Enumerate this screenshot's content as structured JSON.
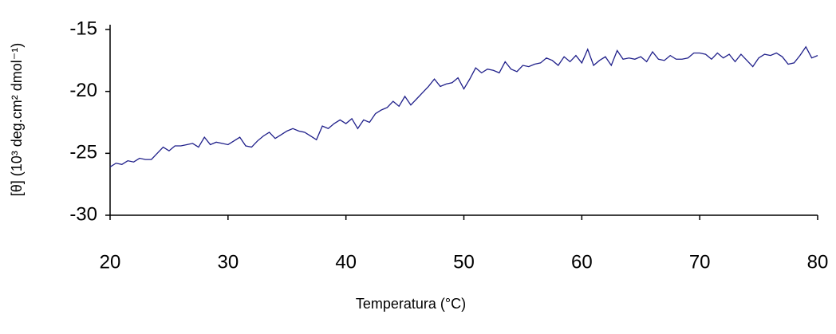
{
  "chart_data": {
    "type": "line",
    "y_label": "[θ] (10³ deg.cm² dmol⁻¹)",
    "x_label": "Temperatura (°C)",
    "xlim": [
      20,
      80
    ],
    "xticks": [
      20,
      30,
      40,
      50,
      60,
      70,
      80
    ],
    "ylim": [
      -30,
      -15
    ],
    "yticks": [
      -30,
      -25,
      -20,
      -15
    ],
    "grid": false,
    "x": [
      20,
      20.5,
      21,
      21.5,
      22,
      22.5,
      23,
      23.5,
      24,
      24.5,
      25,
      25.5,
      26,
      26.5,
      27,
      27.5,
      28,
      28.5,
      29,
      29.5,
      30,
      30.5,
      31,
      31.5,
      32,
      32.5,
      33,
      33.5,
      34,
      34.5,
      35,
      35.5,
      36,
      36.5,
      37,
      37.5,
      38,
      38.5,
      39,
      39.5,
      40,
      40.5,
      41,
      41.5,
      42,
      42.5,
      43,
      43.5,
      44,
      44.5,
      45,
      45.5,
      46,
      46.5,
      47,
      47.5,
      48,
      48.5,
      49,
      49.5,
      50,
      50.5,
      51,
      51.5,
      52,
      52.5,
      53,
      53.5,
      54,
      54.5,
      55,
      55.5,
      56,
      56.5,
      57,
      57.5,
      58,
      58.5,
      59,
      59.5,
      60,
      60.5,
      61,
      61.5,
      62,
      62.5,
      63,
      63.5,
      64,
      64.5,
      65,
      65.5,
      66,
      66.5,
      67,
      67.5,
      68,
      68.5,
      69,
      69.5,
      70,
      70.5,
      71,
      71.5,
      72,
      72.5,
      73,
      73.5,
      74,
      74.5,
      75,
      75.5,
      76,
      76.5,
      77,
      77.5,
      78,
      78.5,
      79,
      79.5,
      80
    ],
    "series": [
      {
        "color": "#1f1f8a",
        "values": [
          -26.1,
          -25.8,
          -25.9,
          -25.6,
          -25.7,
          -25.4,
          -25.5,
          -25.5,
          -25.0,
          -24.5,
          -24.8,
          -24.4,
          -24.4,
          -24.3,
          -24.2,
          -24.5,
          -23.7,
          -24.3,
          -24.1,
          -24.2,
          -24.3,
          -24.0,
          -23.7,
          -24.4,
          -24.5,
          -24.0,
          -23.6,
          -23.3,
          -23.8,
          -23.5,
          -23.2,
          -23.0,
          -23.2,
          -23.3,
          -23.6,
          -23.9,
          -22.8,
          -23.0,
          -22.6,
          -22.3,
          -22.6,
          -22.2,
          -23.0,
          -22.3,
          -22.5,
          -21.8,
          -21.5,
          -21.3,
          -20.8,
          -21.2,
          -20.4,
          -21.1,
          -20.6,
          -20.1,
          -19.6,
          -19.0,
          -19.6,
          -19.4,
          -19.3,
          -18.9,
          -19.8,
          -19.0,
          -18.1,
          -18.5,
          -18.2,
          -18.3,
          -18.5,
          -17.6,
          -18.2,
          -18.4,
          -17.9,
          -18.0,
          -17.8,
          -17.7,
          -17.3,
          -17.5,
          -17.9,
          -17.2,
          -17.6,
          -17.1,
          -17.7,
          -16.6,
          -17.9,
          -17.5,
          -17.2,
          -17.9,
          -16.7,
          -17.4,
          -17.3,
          -17.4,
          -17.2,
          -17.6,
          -16.8,
          -17.4,
          -17.5,
          -17.1,
          -17.4,
          -17.4,
          -17.3,
          -16.9,
          -16.9,
          -17.0,
          -17.4,
          -16.9,
          -17.3,
          -17.0,
          -17.6,
          -17.0,
          -17.5,
          -18.0,
          -17.3,
          -17.0,
          -17.1,
          -16.9,
          -17.2,
          -17.8,
          -17.7,
          -17.1,
          -16.4,
          -17.3,
          -17.1
        ]
      }
    ]
  }
}
